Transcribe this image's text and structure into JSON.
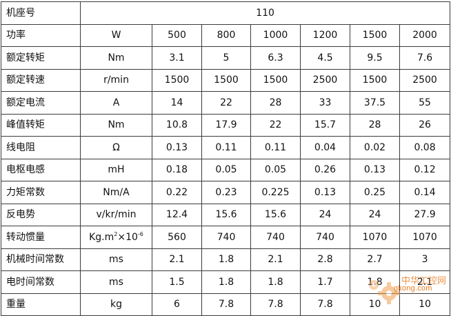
{
  "model_row": {
    "label": "机座号",
    "value": "110"
  },
  "power_row": {
    "label": "功率",
    "unit": "W",
    "values": [
      "500",
      "800",
      "1000",
      "1200",
      "1500",
      "2000"
    ]
  },
  "rows": [
    {
      "label": "额定转矩",
      "unit": "Nm",
      "values": [
        "3.1",
        "5",
        "6.3",
        "4.5",
        "9.5",
        "7.6"
      ]
    },
    {
      "label": "额定转速",
      "unit": "r/min",
      "values": [
        "1500",
        "1500",
        "1500",
        "2500",
        "1500",
        "2500"
      ]
    },
    {
      "label": "额定电流",
      "unit": "A",
      "values": [
        "14",
        "22",
        "28",
        "33",
        "37.5",
        "55"
      ]
    },
    {
      "label": "峰值转矩",
      "unit": "Nm",
      "values": [
        "10.8",
        "17.9",
        "22",
        "15.7",
        "28",
        "26"
      ]
    },
    {
      "label": "线电阻",
      "unit": "Ω",
      "values": [
        "0.13",
        "0.11",
        "0.11",
        "0.04",
        "0.02",
        "0.08"
      ]
    },
    {
      "label": "电枢电感",
      "unit": "mH",
      "values": [
        "0.18",
        "0.05",
        "0.05",
        "0.26",
        "0.13",
        "0.12"
      ]
    },
    {
      "label": "力矩常数",
      "unit": "Nm/A",
      "values": [
        "0.22",
        "0.23",
        "0.225",
        "0.13",
        "0.25",
        "0.14"
      ]
    },
    {
      "label": "反电势",
      "unit": "v/kr/min",
      "values": [
        "12.4",
        "15.6",
        "15.6",
        "24",
        "24",
        "27.9"
      ]
    },
    {
      "label": "转动惯量",
      "unit_base": "Kg.m",
      "unit_sup1": "2",
      "unit_mid": "×10",
      "unit_sup2": "-6",
      "values": [
        "560",
        "740",
        "740",
        "740",
        "1070",
        "1070"
      ]
    },
    {
      "label": "机械时间常数",
      "unit": "ms",
      "values": [
        "2.1",
        "1.8",
        "2.1",
        "2.8",
        "2.7",
        "3"
      ]
    },
    {
      "label": "电时间常数",
      "unit": "ms",
      "values": [
        "1.5",
        "1.8",
        "1.8",
        "1.7",
        "1.8",
        "2.1"
      ]
    },
    {
      "label": "重量",
      "unit": "kg",
      "values": [
        "6",
        "7.8",
        "7.8",
        "7.8",
        "10",
        "10"
      ]
    }
  ],
  "watermark": {
    "text": "中华工控网",
    "site": "gkong.com",
    "color": "#e87b1e"
  }
}
